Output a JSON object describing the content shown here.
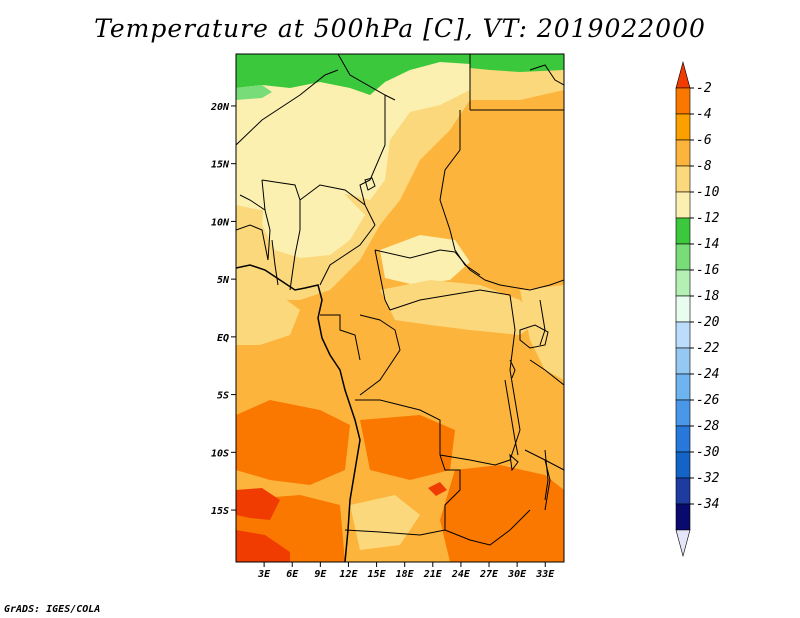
{
  "title": "Temperature at 500hPa [C], VT: 2019022000",
  "credit": "GrADS: IGES/COLA",
  "map": {
    "lon_range": [
      0,
      35
    ],
    "lat_range": [
      -19.5,
      24.5
    ],
    "lon_ticks": [
      {
        "value": 3,
        "label": "3E"
      },
      {
        "value": 6,
        "label": "6E"
      },
      {
        "value": 9,
        "label": "9E"
      },
      {
        "value": 12,
        "label": "12E"
      },
      {
        "value": 15,
        "label": "15E"
      },
      {
        "value": 18,
        "label": "18E"
      },
      {
        "value": 21,
        "label": "21E"
      },
      {
        "value": 24,
        "label": "24E"
      },
      {
        "value": 27,
        "label": "27E"
      },
      {
        "value": 30,
        "label": "30E"
      },
      {
        "value": 33,
        "label": "33E"
      }
    ],
    "lat_ticks": [
      {
        "value": 20,
        "label": "20N"
      },
      {
        "value": 15,
        "label": "15N"
      },
      {
        "value": 10,
        "label": "10N"
      },
      {
        "value": 5,
        "label": "5N"
      },
      {
        "value": 0,
        "label": "EQ"
      },
      {
        "value": -5,
        "label": "5S"
      },
      {
        "value": -10,
        "label": "10S"
      },
      {
        "value": -15,
        "label": "15S"
      }
    ]
  },
  "colorbar": {
    "labels": [
      "-2",
      "-4",
      "-6",
      "-8",
      "-10",
      "-12",
      "-14",
      "-16",
      "-18",
      "-20",
      "-22",
      "-24",
      "-26",
      "-28",
      "-30",
      "-32",
      "-34"
    ],
    "colors": [
      "#f03c00",
      "#fa7800",
      "#fca000",
      "#fcb43c",
      "#fcd87c",
      "#fcf0b0",
      "#3cc83c",
      "#78dc78",
      "#b4f0b4",
      "#e8fcf0",
      "#bcdcfc",
      "#96c8f4",
      "#6eb4f0",
      "#4a96e8",
      "#2878dc",
      "#1464c8",
      "#1e3ca0",
      "#0a0a6e",
      "#e6e6fa"
    ]
  }
}
